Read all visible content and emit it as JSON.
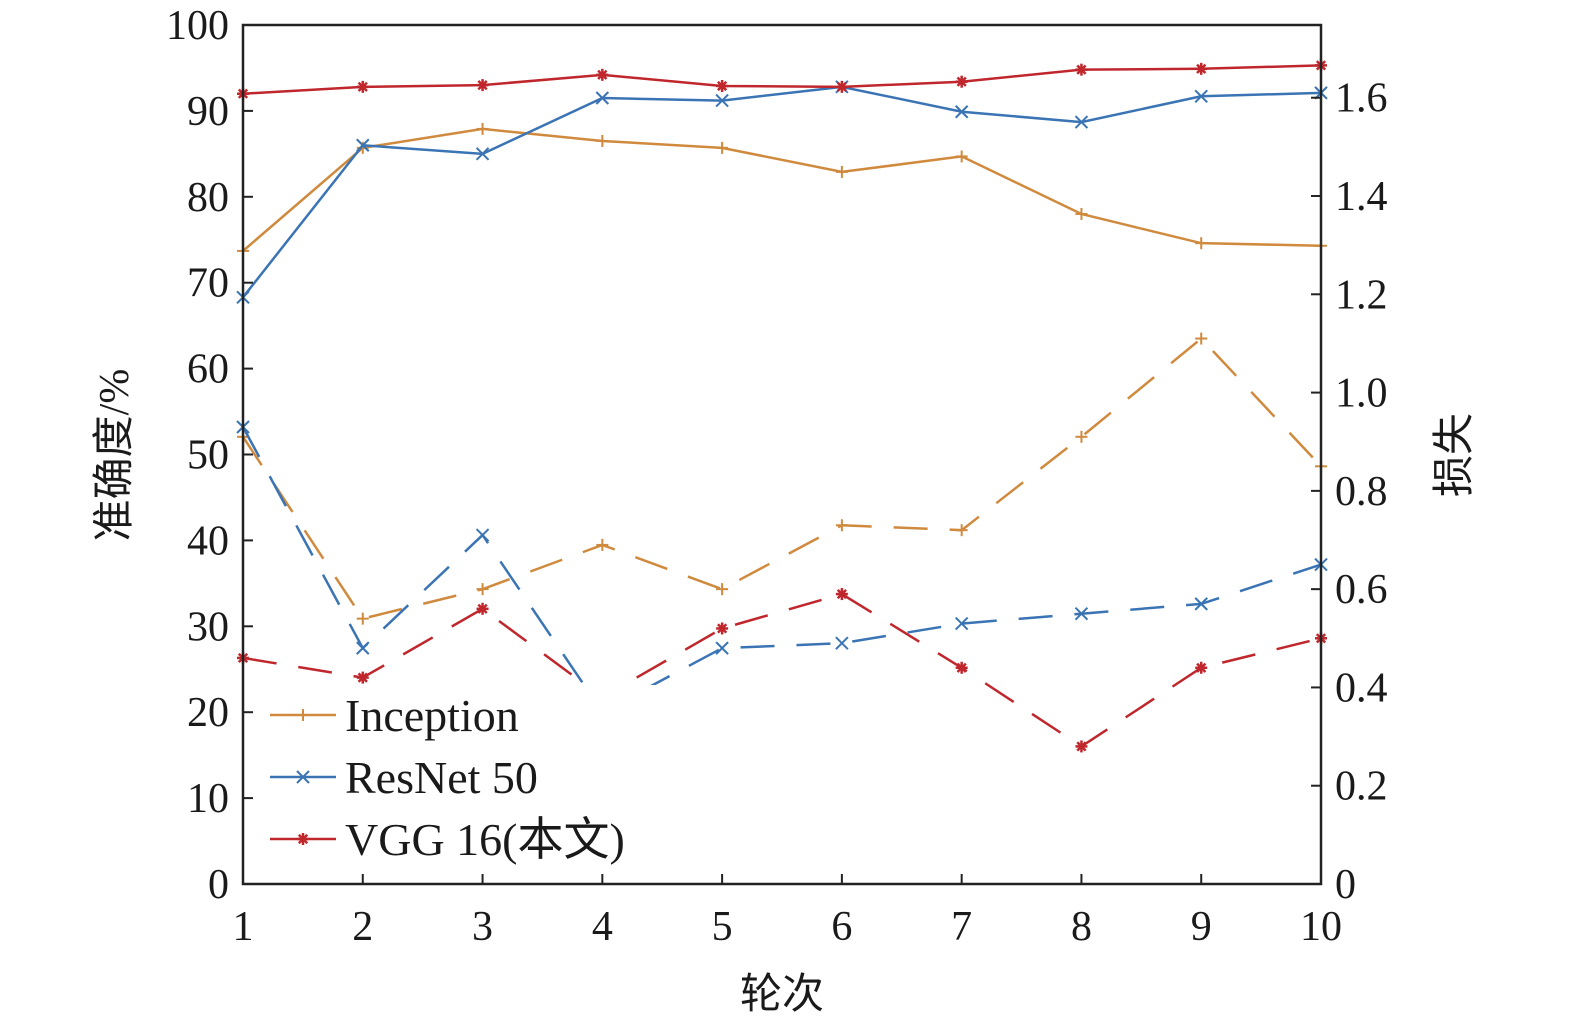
{
  "chart_data": {
    "type": "line",
    "title": "",
    "xlabel": "轮次",
    "ylabel_left": "准确度/%",
    "ylabel_right": "损失",
    "x": [
      1,
      2,
      3,
      4,
      5,
      6,
      7,
      8,
      9,
      10
    ],
    "xlim": [
      1,
      10
    ],
    "ylim_left": [
      0,
      100
    ],
    "ylim_right": [
      0,
      1.748
    ],
    "x_ticks": [
      "1",
      "2",
      "3",
      "4",
      "5",
      "6",
      "7",
      "8",
      "9",
      "10"
    ],
    "y_ticks_left": [
      "0",
      "10",
      "20",
      "30",
      "40",
      "50",
      "60",
      "70",
      "80",
      "90",
      "100"
    ],
    "y_ticks_right": [
      "0",
      "0.2",
      "0.4",
      "0.6",
      "0.8",
      "1.0",
      "1.2",
      "1.4",
      "1.6"
    ],
    "legend_placement": "bottom-left",
    "grid": false,
    "series": [
      {
        "name": "Inception",
        "color": "#d08a3e",
        "marker": "plus",
        "accuracy": [
          73.7,
          85.7,
          87.9,
          86.5,
          85.7,
          82.9,
          84.7,
          78.0,
          74.6,
          74.3
        ],
        "loss": [
          0.91,
          0.54,
          0.6,
          0.69,
          0.6,
          0.73,
          0.72,
          0.91,
          1.11,
          0.85
        ]
      },
      {
        "name": "ResNet 50",
        "color": "#3a74b4",
        "marker": "x",
        "accuracy": [
          68.3,
          86.0,
          85.0,
          91.5,
          91.2,
          92.8,
          89.9,
          88.7,
          91.7,
          92.1
        ],
        "loss": [
          0.93,
          0.48,
          0.71,
          0.35,
          0.48,
          0.49,
          0.53,
          0.55,
          0.57,
          0.65
        ]
      },
      {
        "name": "VGG 16(本文)",
        "color": "#c0272d",
        "marker": "asterisk",
        "accuracy": [
          92.0,
          92.8,
          93.0,
          94.2,
          92.9,
          92.8,
          93.4,
          94.8,
          94.9,
          95.3
        ],
        "loss": [
          0.46,
          0.42,
          0.56,
          0.38,
          0.52,
          0.59,
          0.44,
          0.28,
          0.44,
          0.5
        ]
      }
    ]
  }
}
